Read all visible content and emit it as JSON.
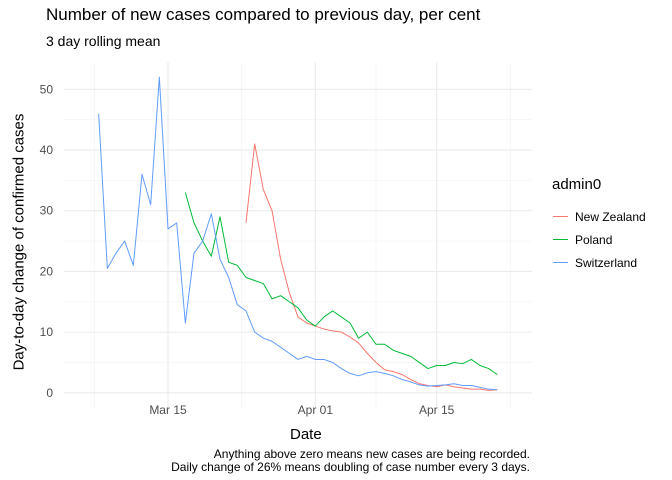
{
  "chart_data": {
    "type": "line",
    "title": "Number of new cases compared to previous day, per cent",
    "subtitle": "3 day rolling mean",
    "xlabel": "Date",
    "ylabel": "Day-to-day change of confirmed cases",
    "caption": [
      "Anything above zero means new cases are being recorded.",
      "Daily change of 26% means doubling of case number every 3 days."
    ],
    "legend_title": "admin0",
    "legend_position": "right",
    "grid": true,
    "xlim": [
      "2020-03-03",
      "2020-04-26"
    ],
    "ylim": [
      -2.5,
      54.5
    ],
    "x_ticks": [
      {
        "date": "2020-03-15",
        "label": "Mar 15"
      },
      {
        "date": "2020-04-01",
        "label": "Apr 01"
      },
      {
        "date": "2020-04-15",
        "label": "Apr 15"
      }
    ],
    "y_ticks": [
      0,
      10,
      20,
      30,
      40,
      50
    ],
    "series": [
      {
        "name": "New Zealand",
        "color": "#F8766D",
        "points": [
          [
            "2020-03-24",
            28.0
          ],
          [
            "2020-03-25",
            41.0
          ],
          [
            "2020-03-26",
            33.5
          ],
          [
            "2020-03-27",
            30.0
          ],
          [
            "2020-03-28",
            22.0
          ],
          [
            "2020-03-29",
            16.5
          ],
          [
            "2020-03-30",
            12.5
          ],
          [
            "2020-03-31",
            11.5
          ],
          [
            "2020-04-01",
            11.0
          ],
          [
            "2020-04-02",
            10.5
          ],
          [
            "2020-04-03",
            10.2
          ],
          [
            "2020-04-04",
            10.0
          ],
          [
            "2020-04-05",
            9.2
          ],
          [
            "2020-04-06",
            8.2
          ],
          [
            "2020-04-07",
            6.5
          ],
          [
            "2020-04-08",
            5.0
          ],
          [
            "2020-04-09",
            3.8
          ],
          [
            "2020-04-10",
            3.5
          ],
          [
            "2020-04-11",
            3.0
          ],
          [
            "2020-04-12",
            2.2
          ],
          [
            "2020-04-13",
            1.5
          ],
          [
            "2020-04-14",
            1.2
          ],
          [
            "2020-04-15",
            1.0
          ],
          [
            "2020-04-16",
            1.3
          ],
          [
            "2020-04-17",
            1.0
          ],
          [
            "2020-04-18",
            0.8
          ],
          [
            "2020-04-19",
            0.6
          ],
          [
            "2020-04-20",
            0.6
          ],
          [
            "2020-04-21",
            0.4
          ],
          [
            "2020-04-22",
            0.5
          ]
        ]
      },
      {
        "name": "Poland",
        "color": "#00BA38",
        "points": [
          [
            "2020-03-17",
            33.0
          ],
          [
            "2020-03-18",
            28.0
          ],
          [
            "2020-03-19",
            25.0
          ],
          [
            "2020-03-20",
            22.5
          ],
          [
            "2020-03-21",
            29.0
          ],
          [
            "2020-03-22",
            21.5
          ],
          [
            "2020-03-23",
            21.0
          ],
          [
            "2020-03-24",
            19.0
          ],
          [
            "2020-03-25",
            18.5
          ],
          [
            "2020-03-26",
            18.0
          ],
          [
            "2020-03-27",
            15.5
          ],
          [
            "2020-03-28",
            16.0
          ],
          [
            "2020-03-29",
            15.0
          ],
          [
            "2020-03-30",
            14.0
          ],
          [
            "2020-03-31",
            12.0
          ],
          [
            "2020-04-01",
            11.0
          ],
          [
            "2020-04-02",
            12.5
          ],
          [
            "2020-04-03",
            13.5
          ],
          [
            "2020-04-04",
            12.5
          ],
          [
            "2020-04-05",
            11.5
          ],
          [
            "2020-04-06",
            9.0
          ],
          [
            "2020-04-07",
            10.0
          ],
          [
            "2020-04-08",
            8.0
          ],
          [
            "2020-04-09",
            8.0
          ],
          [
            "2020-04-10",
            7.0
          ],
          [
            "2020-04-11",
            6.5
          ],
          [
            "2020-04-12",
            6.0
          ],
          [
            "2020-04-13",
            5.0
          ],
          [
            "2020-04-14",
            4.0
          ],
          [
            "2020-04-15",
            4.5
          ],
          [
            "2020-04-16",
            4.5
          ],
          [
            "2020-04-17",
            5.0
          ],
          [
            "2020-04-18",
            4.8
          ],
          [
            "2020-04-19",
            5.5
          ],
          [
            "2020-04-20",
            4.5
          ],
          [
            "2020-04-21",
            4.0
          ],
          [
            "2020-04-22",
            3.0
          ]
        ]
      },
      {
        "name": "Switzerland",
        "color": "#619CFF",
        "points": [
          [
            "2020-03-07",
            46.0
          ],
          [
            "2020-03-08",
            20.5
          ],
          [
            "2020-03-09",
            23.0
          ],
          [
            "2020-03-10",
            25.0
          ],
          [
            "2020-03-11",
            21.0
          ],
          [
            "2020-03-12",
            36.0
          ],
          [
            "2020-03-13",
            31.0
          ],
          [
            "2020-03-14",
            52.0
          ],
          [
            "2020-03-15",
            27.0
          ],
          [
            "2020-03-16",
            28.0
          ],
          [
            "2020-03-17",
            11.5
          ],
          [
            "2020-03-18",
            23.0
          ],
          [
            "2020-03-19",
            25.0
          ],
          [
            "2020-03-20",
            29.5
          ],
          [
            "2020-03-21",
            22.0
          ],
          [
            "2020-03-22",
            19.0
          ],
          [
            "2020-03-23",
            14.5
          ],
          [
            "2020-03-24",
            13.5
          ],
          [
            "2020-03-25",
            10.0
          ],
          [
            "2020-03-26",
            9.0
          ],
          [
            "2020-03-27",
            8.5
          ],
          [
            "2020-03-28",
            7.5
          ],
          [
            "2020-03-29",
            6.5
          ],
          [
            "2020-03-30",
            5.5
          ],
          [
            "2020-03-31",
            6.0
          ],
          [
            "2020-04-01",
            5.5
          ],
          [
            "2020-04-02",
            5.5
          ],
          [
            "2020-04-03",
            5.0
          ],
          [
            "2020-04-04",
            4.0
          ],
          [
            "2020-04-05",
            3.2
          ],
          [
            "2020-04-06",
            2.8
          ],
          [
            "2020-04-07",
            3.3
          ],
          [
            "2020-04-08",
            3.5
          ],
          [
            "2020-04-09",
            3.2
          ],
          [
            "2020-04-10",
            2.8
          ],
          [
            "2020-04-11",
            2.2
          ],
          [
            "2020-04-12",
            1.8
          ],
          [
            "2020-04-13",
            1.3
          ],
          [
            "2020-04-14",
            1.1
          ],
          [
            "2020-04-15",
            1.2
          ],
          [
            "2020-04-16",
            1.3
          ],
          [
            "2020-04-17",
            1.5
          ],
          [
            "2020-04-18",
            1.2
          ],
          [
            "2020-04-19",
            1.2
          ],
          [
            "2020-04-20",
            0.9
          ],
          [
            "2020-04-21",
            0.6
          ],
          [
            "2020-04-22",
            0.5
          ]
        ]
      }
    ]
  }
}
